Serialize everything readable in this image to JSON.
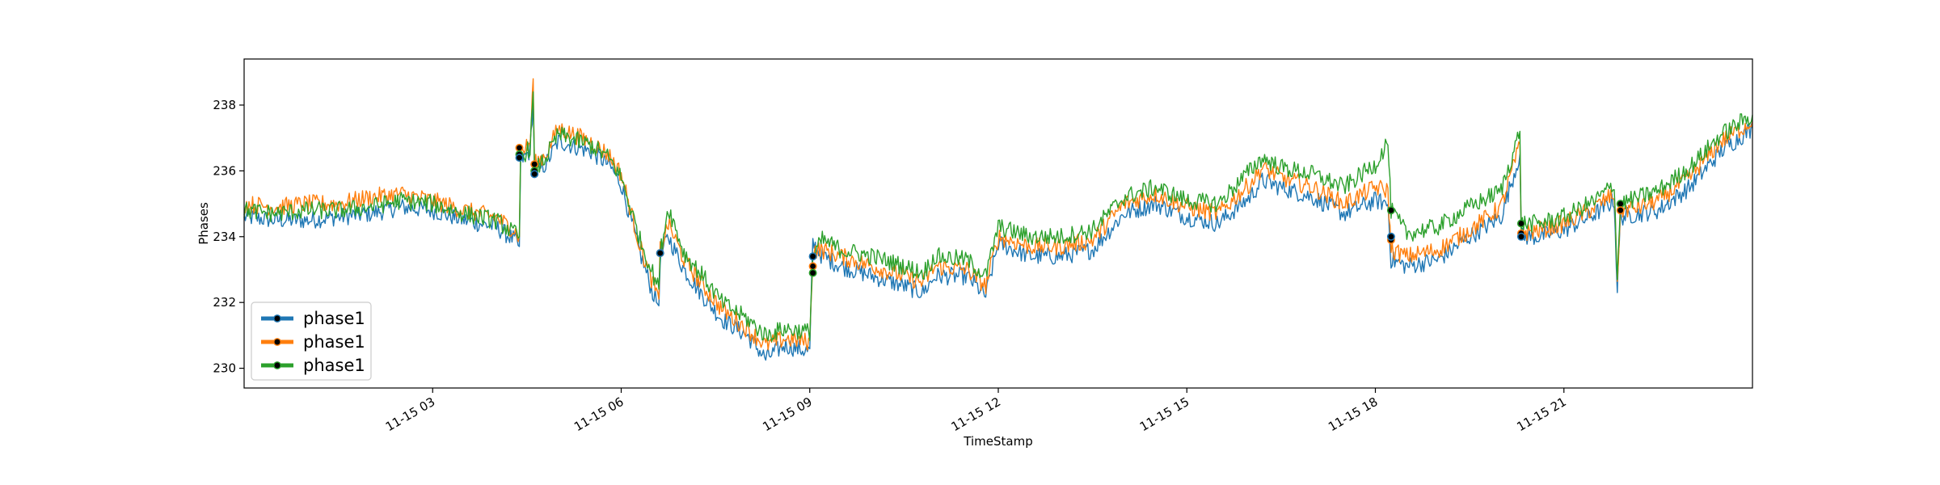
{
  "chart_data": {
    "type": "line",
    "title": "",
    "xlabel": "TimeStamp",
    "ylabel": "Phases",
    "xlim": [
      "11-15 00:00",
      "11-16 00:00"
    ],
    "ylim": [
      229.4,
      239.4
    ],
    "x_ticks": [
      3,
      6,
      9,
      12,
      15,
      18,
      21
    ],
    "x_tick_labels": [
      "11-15 03",
      "11-15 06",
      "11-15 09",
      "11-15 12",
      "11-15 15",
      "11-15 18",
      "11-15 21"
    ],
    "y_ticks": [
      230,
      232,
      234,
      236,
      238
    ],
    "y_tick_labels": [
      "230",
      "232",
      "234",
      "236",
      "238"
    ],
    "legend_position": "lower-left",
    "grid": false,
    "series": [
      {
        "name": "phase1",
        "color": "#1f77b4",
        "points": [
          [
            0,
            234.6
          ],
          [
            0.5,
            234.5
          ],
          [
            1,
            234.5
          ],
          [
            1.5,
            234.6
          ],
          [
            2,
            234.7
          ],
          [
            2.5,
            234.9
          ],
          [
            3,
            234.8
          ],
          [
            3.5,
            234.5
          ],
          [
            4,
            234.3
          ],
          [
            4.3,
            233.9
          ],
          [
            4.38,
            233.7
          ],
          [
            4.4,
            236.3
          ],
          [
            4.55,
            236.6
          ],
          [
            4.6,
            238.2
          ],
          [
            4.62,
            235.9
          ],
          [
            4.8,
            236.2
          ],
          [
            5,
            236.9
          ],
          [
            5.5,
            236.6
          ],
          [
            5.8,
            236.2
          ],
          [
            6,
            235.6
          ],
          [
            6.3,
            233.5
          ],
          [
            6.5,
            232.3
          ],
          [
            6.6,
            231.9
          ],
          [
            6.62,
            233.4
          ],
          [
            6.75,
            234.0
          ],
          [
            7,
            233.0
          ],
          [
            7.3,
            232.2
          ],
          [
            7.6,
            231.5
          ],
          [
            8,
            231.0
          ],
          [
            8.3,
            230.3
          ],
          [
            8.6,
            230.7
          ],
          [
            9,
            230.5
          ],
          [
            9.05,
            233.8
          ],
          [
            9.2,
            233.4
          ],
          [
            9.5,
            233.1
          ],
          [
            10,
            232.8
          ],
          [
            10.5,
            232.5
          ],
          [
            10.8,
            232.3
          ],
          [
            11,
            232.8
          ],
          [
            11.5,
            232.8
          ],
          [
            11.8,
            232.2
          ],
          [
            12,
            233.8
          ],
          [
            12.5,
            233.4
          ],
          [
            13,
            233.4
          ],
          [
            13.5,
            233.6
          ],
          [
            14,
            234.7
          ],
          [
            14.5,
            235.0
          ],
          [
            15,
            234.6
          ],
          [
            15.5,
            234.4
          ],
          [
            16,
            235.2
          ],
          [
            16.2,
            235.7
          ],
          [
            16.5,
            235.5
          ],
          [
            17,
            235.2
          ],
          [
            17.5,
            234.7
          ],
          [
            18,
            235.1
          ],
          [
            18.2,
            235.0
          ],
          [
            18.25,
            233.3
          ],
          [
            18.5,
            233.1
          ],
          [
            19,
            233.3
          ],
          [
            19.5,
            234.0
          ],
          [
            20,
            234.6
          ],
          [
            20.3,
            236.5
          ],
          [
            20.32,
            234.0
          ],
          [
            20.6,
            234.0
          ],
          [
            21,
            234.2
          ],
          [
            21.5,
            234.7
          ],
          [
            21.8,
            235.1
          ],
          [
            21.85,
            232.4
          ],
          [
            21.9,
            234.6
          ],
          [
            22.2,
            234.7
          ],
          [
            22.5,
            234.8
          ],
          [
            23,
            235.5
          ],
          [
            23.5,
            236.6
          ],
          [
            24,
            237.3
          ]
        ]
      },
      {
        "name": "phase1",
        "color": "#ff7f0e",
        "points": [
          [
            0,
            235.0
          ],
          [
            0.5,
            234.9
          ],
          [
            1,
            235.0
          ],
          [
            1.5,
            235.0
          ],
          [
            2,
            235.2
          ],
          [
            2.5,
            235.3
          ],
          [
            3,
            235.1
          ],
          [
            3.5,
            234.8
          ],
          [
            4,
            234.6
          ],
          [
            4.3,
            234.2
          ],
          [
            4.38,
            234.0
          ],
          [
            4.4,
            236.6
          ],
          [
            4.55,
            236.8
          ],
          [
            4.6,
            238.8
          ],
          [
            4.62,
            236.2
          ],
          [
            4.8,
            236.5
          ],
          [
            5,
            237.3
          ],
          [
            5.5,
            236.9
          ],
          [
            5.8,
            236.5
          ],
          [
            6,
            235.9
          ],
          [
            6.3,
            233.7
          ],
          [
            6.5,
            232.6
          ],
          [
            6.6,
            232.1
          ],
          [
            6.62,
            233.6
          ],
          [
            6.75,
            234.4
          ],
          [
            7,
            233.3
          ],
          [
            7.3,
            232.5
          ],
          [
            7.6,
            231.8
          ],
          [
            8,
            231.2
          ],
          [
            8.3,
            230.7
          ],
          [
            8.6,
            230.9
          ],
          [
            9,
            230.8
          ],
          [
            9.05,
            233.6
          ],
          [
            9.2,
            233.6
          ],
          [
            9.5,
            233.4
          ],
          [
            10,
            233.1
          ],
          [
            10.5,
            232.8
          ],
          [
            10.8,
            232.6
          ],
          [
            11,
            233.1
          ],
          [
            11.5,
            233.0
          ],
          [
            11.8,
            232.5
          ],
          [
            12,
            234.0
          ],
          [
            12.5,
            233.7
          ],
          [
            13,
            233.7
          ],
          [
            13.5,
            233.9
          ],
          [
            14,
            235.0
          ],
          [
            14.5,
            235.3
          ],
          [
            15,
            234.9
          ],
          [
            15.5,
            234.7
          ],
          [
            16,
            235.6
          ],
          [
            16.2,
            236.1
          ],
          [
            16.5,
            235.8
          ],
          [
            17,
            235.5
          ],
          [
            17.5,
            235.0
          ],
          [
            18,
            235.5
          ],
          [
            18.2,
            235.4
          ],
          [
            18.25,
            233.6
          ],
          [
            18.5,
            233.4
          ],
          [
            19,
            233.6
          ],
          [
            19.5,
            234.2
          ],
          [
            20,
            234.9
          ],
          [
            20.3,
            236.8
          ],
          [
            20.32,
            234.1
          ],
          [
            20.6,
            234.2
          ],
          [
            21,
            234.4
          ],
          [
            21.5,
            234.9
          ],
          [
            21.8,
            235.3
          ],
          [
            21.85,
            232.7
          ],
          [
            21.9,
            234.8
          ],
          [
            22.2,
            234.9
          ],
          [
            22.5,
            235.1
          ],
          [
            23,
            235.8
          ],
          [
            23.5,
            236.9
          ],
          [
            24,
            237.5
          ]
        ]
      },
      {
        "name": "phase1",
        "color": "#2ca02c",
        "points": [
          [
            0,
            234.8
          ],
          [
            0.5,
            234.7
          ],
          [
            1,
            234.8
          ],
          [
            1.5,
            234.8
          ],
          [
            2,
            234.9
          ],
          [
            2.5,
            235.1
          ],
          [
            3,
            235.0
          ],
          [
            3.5,
            234.7
          ],
          [
            4,
            234.5
          ],
          [
            4.3,
            234.1
          ],
          [
            4.38,
            234.0
          ],
          [
            4.4,
            236.4
          ],
          [
            4.55,
            236.7
          ],
          [
            4.6,
            238.4
          ],
          [
            4.62,
            236.0
          ],
          [
            4.8,
            236.4
          ],
          [
            5,
            237.1
          ],
          [
            5.5,
            236.8
          ],
          [
            5.8,
            236.4
          ],
          [
            6,
            235.8
          ],
          [
            6.3,
            233.9
          ],
          [
            6.5,
            232.9
          ],
          [
            6.6,
            232.4
          ],
          [
            6.62,
            233.5
          ],
          [
            6.75,
            234.9
          ],
          [
            7,
            233.5
          ],
          [
            7.3,
            232.8
          ],
          [
            7.6,
            232.0
          ],
          [
            8,
            231.5
          ],
          [
            8.3,
            231.0
          ],
          [
            8.6,
            231.2
          ],
          [
            9,
            231.1
          ],
          [
            9.05,
            233.4
          ],
          [
            9.2,
            233.9
          ],
          [
            9.5,
            233.6
          ],
          [
            10,
            233.4
          ],
          [
            10.5,
            233.1
          ],
          [
            10.8,
            232.9
          ],
          [
            11,
            233.4
          ],
          [
            11.5,
            233.3
          ],
          [
            11.8,
            232.8
          ],
          [
            12,
            234.3
          ],
          [
            12.5,
            234.0
          ],
          [
            13,
            234.0
          ],
          [
            13.5,
            234.2
          ],
          [
            14,
            235.2
          ],
          [
            14.5,
            235.5
          ],
          [
            15,
            235.1
          ],
          [
            15.5,
            235.0
          ],
          [
            16,
            236.0
          ],
          [
            16.2,
            236.4
          ],
          [
            16.5,
            236.1
          ],
          [
            17,
            235.9
          ],
          [
            17.5,
            235.5
          ],
          [
            18,
            236.2
          ],
          [
            18.2,
            236.9
          ],
          [
            18.25,
            234.8
          ],
          [
            18.5,
            234.1
          ],
          [
            19,
            234.3
          ],
          [
            19.5,
            234.9
          ],
          [
            20,
            235.4
          ],
          [
            20.3,
            237.2
          ],
          [
            20.32,
            234.4
          ],
          [
            20.6,
            234.4
          ],
          [
            21,
            234.6
          ],
          [
            21.5,
            235.1
          ],
          [
            21.8,
            235.6
          ],
          [
            21.85,
            232.8
          ],
          [
            21.9,
            235.0
          ],
          [
            22.2,
            235.2
          ],
          [
            22.5,
            235.4
          ],
          [
            23,
            236.1
          ],
          [
            23.5,
            237.1
          ],
          [
            24,
            237.7
          ]
        ]
      }
    ],
    "markers": [
      {
        "x": 4.38,
        "y": 236.7,
        "series": 1
      },
      {
        "x": 4.38,
        "y": 236.5,
        "series": 2
      },
      {
        "x": 4.38,
        "y": 236.4,
        "series": 0
      },
      {
        "x": 4.62,
        "y": 236.2,
        "series": 1
      },
      {
        "x": 4.62,
        "y": 236.0,
        "series": 2
      },
      {
        "x": 4.62,
        "y": 235.9,
        "series": 0
      },
      {
        "x": 6.62,
        "y": 233.5,
        "series": 1
      },
      {
        "x": 6.62,
        "y": 233.5,
        "series": 0
      },
      {
        "x": 9.05,
        "y": 233.4,
        "series": 0
      },
      {
        "x": 9.05,
        "y": 233.1,
        "series": 1
      },
      {
        "x": 9.05,
        "y": 232.9,
        "series": 2
      },
      {
        "x": 18.25,
        "y": 234.8,
        "series": 2
      },
      {
        "x": 18.25,
        "y": 233.9,
        "series": 1
      },
      {
        "x": 18.25,
        "y": 234.0,
        "series": 0
      },
      {
        "x": 20.32,
        "y": 234.4,
        "series": 2
      },
      {
        "x": 20.32,
        "y": 234.1,
        "series": 1
      },
      {
        "x": 20.32,
        "y": 234.0,
        "series": 0
      },
      {
        "x": 21.9,
        "y": 235.0,
        "series": 2
      },
      {
        "x": 21.9,
        "y": 234.8,
        "series": 1
      }
    ]
  }
}
